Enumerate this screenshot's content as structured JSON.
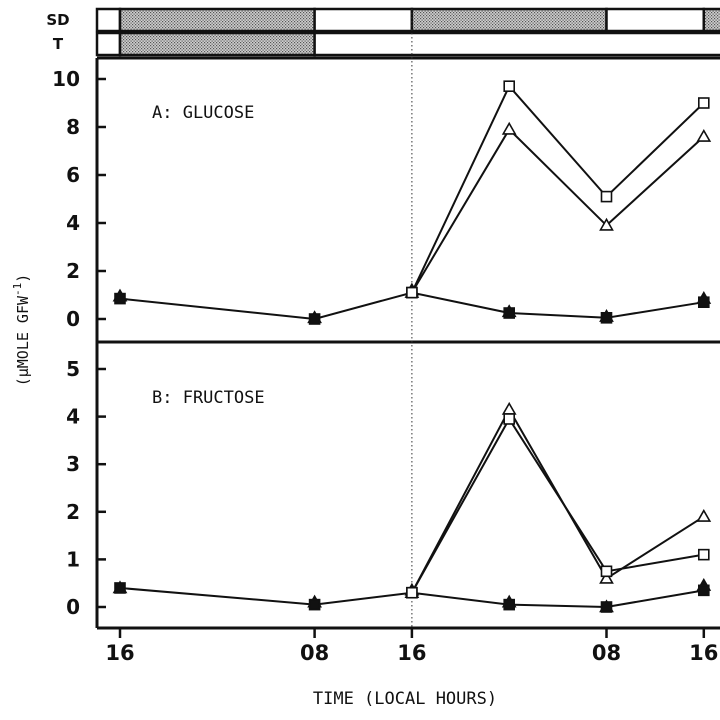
{
  "chart_data": [
    {
      "type": "line",
      "panel_label": "A: GLUCOSE",
      "categories": [
        "16",
        "",
        "08",
        "16",
        "",
        "08",
        "16"
      ],
      "ylim": [
        0,
        10
      ],
      "yticks": [
        0,
        2,
        4,
        6,
        8,
        10
      ],
      "series": [
        {
          "marker": "open-square",
          "x": [
            3,
            4,
            5,
            6
          ],
          "values": [
            1.1,
            9.7,
            5.1,
            9.0
          ]
        },
        {
          "marker": "open-triangle",
          "x": [
            3,
            4,
            5,
            6
          ],
          "values": [
            1.1,
            7.9,
            3.9,
            7.6
          ]
        },
        {
          "marker": "filled-square",
          "x": [
            0,
            2,
            3,
            4,
            5,
            6
          ],
          "values": [
            0.85,
            0.0,
            1.1,
            0.25,
            0.05,
            0.7
          ]
        },
        {
          "marker": "filled-triangle",
          "x": [
            0,
            2,
            3,
            4,
            5,
            6
          ],
          "values": [
            0.95,
            0.05,
            1.2,
            0.3,
            0.1,
            0.85
          ]
        }
      ]
    },
    {
      "type": "line",
      "panel_label": "B: FRUCTOSE",
      "categories": [
        "16",
        "",
        "08",
        "16",
        "",
        "08",
        "16"
      ],
      "ylim": [
        0,
        5
      ],
      "yticks": [
        0,
        1,
        2,
        3,
        4,
        5
      ],
      "series": [
        {
          "marker": "open-square",
          "x": [
            3,
            4,
            5,
            6
          ],
          "values": [
            0.3,
            3.95,
            0.75,
            1.1
          ]
        },
        {
          "marker": "open-triangle",
          "x": [
            3,
            4,
            5,
            6
          ],
          "values": [
            0.3,
            4.15,
            0.6,
            1.9
          ]
        },
        {
          "marker": "filled-square",
          "x": [
            0,
            2,
            3,
            4,
            5,
            6
          ],
          "values": [
            0.4,
            0.05,
            0.3,
            0.05,
            0.0,
            0.35
          ]
        },
        {
          "marker": "filled-triangle",
          "x": [
            0,
            2,
            3,
            4,
            5,
            6
          ],
          "values": [
            0.4,
            0.1,
            0.35,
            0.1,
            0.0,
            0.45
          ]
        }
      ]
    }
  ],
  "xlabel": "TIME (LOCAL HOURS)",
  "ylabel_prefix": "(μMOLE ",
  "ylabel_main": "GFW",
  "ylabel_exp": "-1",
  "ylabel_suffix": ")",
  "x_tick_labels": [
    {
      "x": 0,
      "label": "16"
    },
    {
      "x": 2,
      "label": "08"
    },
    {
      "x": 3,
      "label": "16"
    },
    {
      "x": 5,
      "label": "08"
    },
    {
      "x": 6,
      "label": "16"
    }
  ],
  "reference_line_x": 3,
  "photoperiod_bars": [
    {
      "label": "SD",
      "segments": [
        {
          "from": 0,
          "to": 2,
          "fill": "dark"
        },
        {
          "from": 2,
          "to": 3,
          "fill": "light"
        },
        {
          "from": 3,
          "to": 5,
          "fill": "dark"
        },
        {
          "from": 5,
          "to": 6,
          "fill": "light"
        },
        {
          "from": 6,
          "to": 6.25,
          "fill": "dark"
        }
      ]
    },
    {
      "label": "T",
      "segments": [
        {
          "from": 0,
          "to": 2,
          "fill": "dark"
        },
        {
          "from": 2,
          "to": 6.25,
          "fill": "light"
        }
      ]
    }
  ],
  "colors": {
    "ink": "#111111",
    "stipple": "#9a9a9a",
    "background": "#ffffff"
  }
}
